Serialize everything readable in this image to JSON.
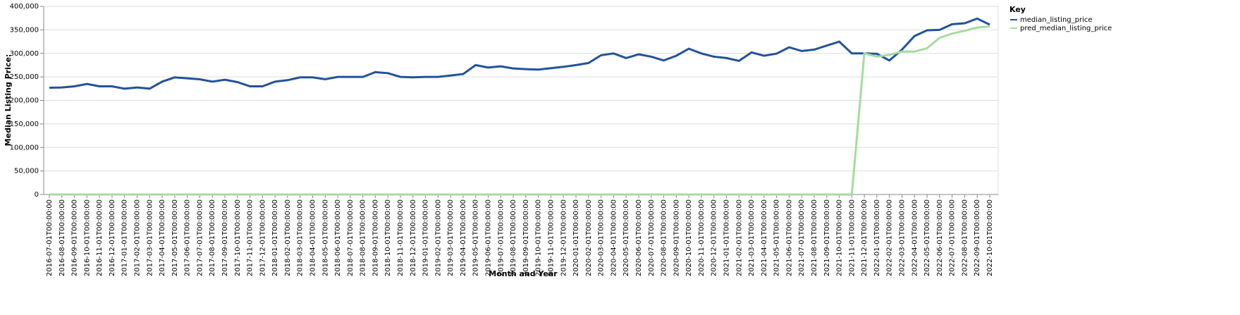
{
  "chart_data": {
    "type": "line",
    "x_label": "Month and Year",
    "y_label": "Median Listing Price:",
    "legend_title": "Key",
    "legend_position": "right",
    "grid": true,
    "categories": [
      "2016-07-01T00:00:00",
      "2016-08-01T00:00:00",
      "2016-09-01T00:00:00",
      "2016-10-01T00:00:00",
      "2016-11-01T00:00:00",
      "2016-12-01T00:00:00",
      "2017-01-01T00:00:00",
      "2017-02-01T00:00:00",
      "2017-03-01T00:00:00",
      "2017-04-01T00:00:00",
      "2017-05-01T00:00:00",
      "2017-06-01T00:00:00",
      "2017-07-01T00:00:00",
      "2017-08-01T00:00:00",
      "2017-09-01T00:00:00",
      "2017-10-01T00:00:00",
      "2017-11-01T00:00:00",
      "2017-12-01T00:00:00",
      "2018-01-01T00:00:00",
      "2018-02-01T00:00:00",
      "2018-03-01T00:00:00",
      "2018-04-01T00:00:00",
      "2018-05-01T00:00:00",
      "2018-06-01T00:00:00",
      "2018-07-01T00:00:00",
      "2018-08-01T00:00:00",
      "2018-09-01T00:00:00",
      "2018-10-01T00:00:00",
      "2018-11-01T00:00:00",
      "2018-12-01T00:00:00",
      "2019-01-01T00:00:00",
      "2019-02-01T00:00:00",
      "2019-03-01T00:00:00",
      "2019-04-01T00:00:00",
      "2019-05-01T00:00:00",
      "2019-06-01T00:00:00",
      "2019-07-01T00:00:00",
      "2019-08-01T00:00:00",
      "2019-09-01T00:00:00",
      "2019-10-01T00:00:00",
      "2019-11-01T00:00:00",
      "2019-12-01T00:00:00",
      "2020-01-01T00:00:00",
      "2020-02-01T00:00:00",
      "2020-03-01T00:00:00",
      "2020-04-01T00:00:00",
      "2020-05-01T00:00:00",
      "2020-06-01T00:00:00",
      "2020-07-01T00:00:00",
      "2020-08-01T00:00:00",
      "2020-09-01T00:00:00",
      "2020-10-01T00:00:00",
      "2020-11-01T00:00:00",
      "2020-12-01T00:00:00",
      "2021-01-01T00:00:00",
      "2021-02-01T00:00:00",
      "2021-03-01T00:00:00",
      "2021-04-01T00:00:00",
      "2021-05-01T00:00:00",
      "2021-06-01T00:00:00",
      "2021-07-01T00:00:00",
      "2021-08-01T00:00:00",
      "2021-09-01T00:00:00",
      "2021-10-01T00:00:00",
      "2021-11-01T00:00:00",
      "2021-12-01T00:00:00",
      "2022-01-01T00:00:00",
      "2022-02-01T00:00:00",
      "2022-03-01T00:00:00",
      "2022-04-01T00:00:00",
      "2022-05-01T00:00:00",
      "2022-06-01T00:00:00",
      "2022-07-01T00:00:00",
      "2022-08-01T00:00:00",
      "2022-09-01T00:00:00",
      "2022-10-01T00:00:00"
    ],
    "series": [
      {
        "name": "median_listing_price",
        "color": "#23529b",
        "values": [
          227000,
          227500,
          230000,
          235000,
          230000,
          230000,
          225000,
          227500,
          225000,
          240000,
          249000,
          247000,
          245000,
          240000,
          244000,
          239000,
          230000,
          230000,
          240000,
          243000,
          249000,
          249000,
          245000,
          250000,
          250000,
          250000,
          260000,
          258000,
          250000,
          249000,
          250000,
          250000,
          253000,
          256000,
          275000,
          270000,
          272500,
          268000,
          266500,
          265500,
          268500,
          271500,
          275000,
          279500,
          296000,
          300000,
          290000,
          298000,
          293000,
          285000,
          295000,
          310000,
          300000,
          293000,
          290000,
          284000,
          302000,
          295000,
          299500,
          313000,
          305000,
          308000,
          316500,
          325000,
          300000,
          300000,
          299000,
          285000,
          308000,
          337000,
          349000,
          350000,
          362000,
          364000,
          374000,
          361000
        ]
      },
      {
        "name": "pred_median_listing_price",
        "color": "#a6dba0",
        "values": [
          0,
          0,
          0,
          0,
          0,
          0,
          0,
          0,
          0,
          0,
          0,
          0,
          0,
          0,
          0,
          0,
          0,
          0,
          0,
          0,
          0,
          0,
          0,
          0,
          0,
          0,
          0,
          0,
          0,
          0,
          0,
          0,
          0,
          0,
          0,
          0,
          0,
          0,
          0,
          0,
          0,
          0,
          0,
          0,
          0,
          0,
          0,
          0,
          0,
          0,
          0,
          0,
          0,
          0,
          0,
          0,
          0,
          0,
          0,
          0,
          0,
          0,
          0,
          0,
          0,
          300000,
          293000,
          297000,
          304000,
          304000,
          311000,
          333000,
          342000,
          348000,
          355000,
          357000
        ]
      }
    ],
    "ylim": [
      0,
      400000
    ],
    "yticks": [
      0,
      {
        "value": 50000,
        "label": "50,000"
      },
      {
        "value": 100000,
        "label": "100,000"
      },
      {
        "value": 150000,
        "label": "150,000"
      },
      {
        "value": 200000,
        "label": "200,000"
      },
      {
        "value": 250000,
        "label": "250,000"
      },
      {
        "value": 300000,
        "label": "300,000"
      },
      {
        "value": 350000,
        "label": "350,000"
      },
      {
        "value": 400000,
        "label": "400,000"
      }
    ]
  }
}
